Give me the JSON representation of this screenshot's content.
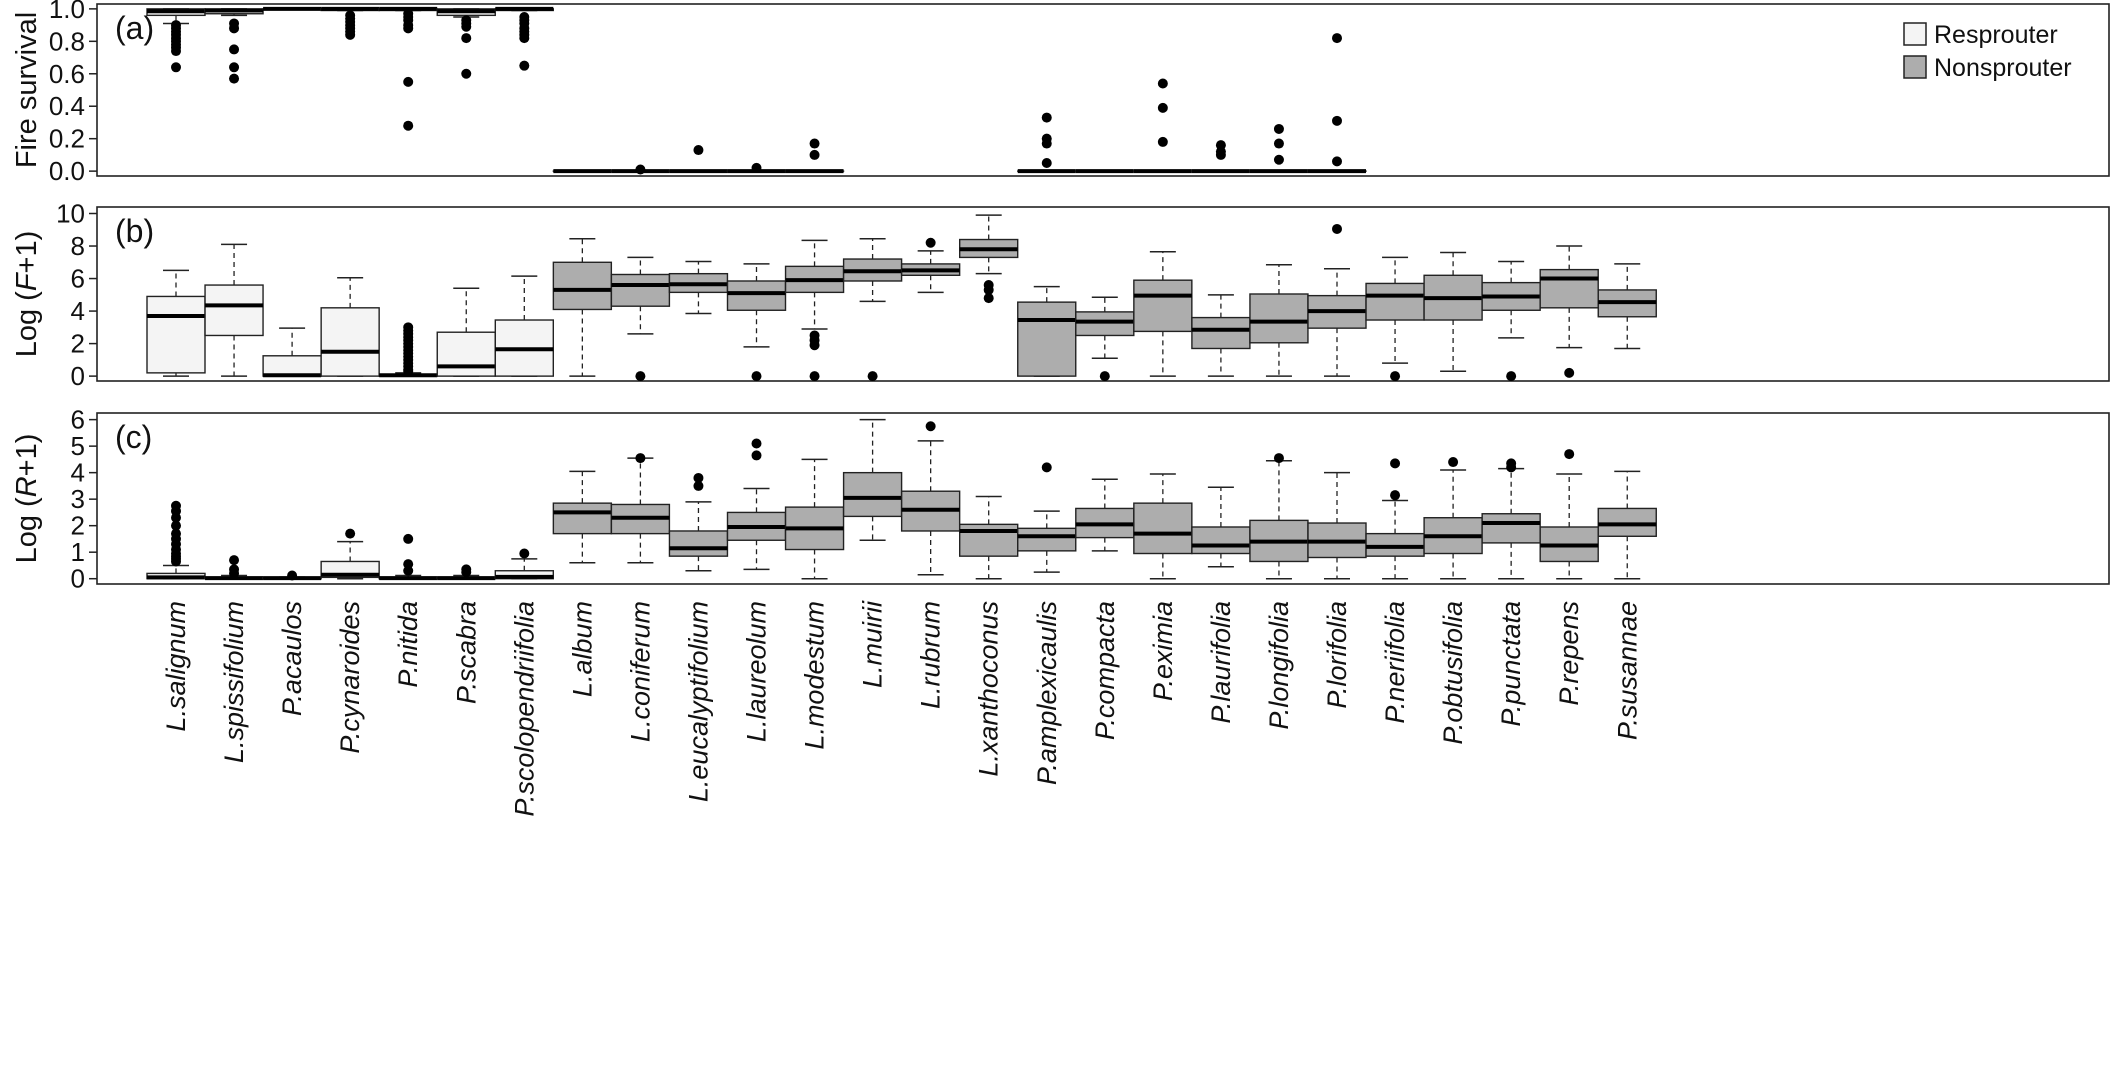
{
  "legend": {
    "resprouter_label": "Resprouter",
    "nonsprouter_label": "Nonsprouter",
    "resprouter_color": "#f4f4f4",
    "nonsprouter_color": "#adadad"
  },
  "species": [
    "L.salignum",
    "L.spissifolium",
    "P.acaulos",
    "P.cynaroides",
    "P.nitida",
    "P.scabra",
    "P.scolopendriifolia",
    "L.album",
    "L.coniferum",
    "L.eucalyptifolium",
    "L.laureolum",
    "L.modestum",
    "L.muirii",
    "L.rubrum",
    "L.xanthoconus",
    "P.amplexicaulis",
    "P.compacta",
    "P.eximia",
    "P.laurifolia",
    "P.longifolia",
    "P.lorifolia",
    "P.neriifolia",
    "P.obtusifolia",
    "P.punctata",
    "P.repens",
    "P.susannae"
  ],
  "groups": [
    "Resprouter",
    "Resprouter",
    "Resprouter",
    "Resprouter",
    "Resprouter",
    "Resprouter",
    "Resprouter",
    "Nonsprouter",
    "Nonsprouter",
    "Nonsprouter",
    "Nonsprouter",
    "Nonsprouter",
    "Nonsprouter",
    "Nonsprouter",
    "Nonsprouter",
    "Nonsprouter",
    "Nonsprouter",
    "Nonsprouter",
    "Nonsprouter",
    "Nonsprouter",
    "Nonsprouter",
    "Nonsprouter",
    "Nonsprouter",
    "Nonsprouter",
    "Nonsprouter",
    "Nonsprouter"
  ],
  "chart_data": [
    {
      "type": "box",
      "panel_label": "(a)",
      "ylabel": "Fire survival",
      "ylim": [
        -0.03,
        1.03
      ],
      "yticks": [
        "0.0",
        "0.2",
        "0.4",
        "0.6",
        "0.8",
        "1.0"
      ],
      "ytick_values": [
        0,
        0.2,
        0.4,
        0.6,
        0.8,
        1.0
      ],
      "legend_position": "top-right",
      "boxes": [
        {
          "lw": 0.91,
          "q1": 0.96,
          "med": 0.985,
          "q3": 1.0,
          "hw": 1.0,
          "out": [
            0.9,
            0.88,
            0.86,
            0.84,
            0.82,
            0.8,
            0.78,
            0.76,
            0.74,
            0.64
          ]
        },
        {
          "lw": 0.96,
          "q1": 0.97,
          "med": 0.99,
          "q3": 1.0,
          "hw": 1.0,
          "out": [
            0.91,
            0.88,
            0.75,
            0.64,
            0.57
          ]
        },
        {
          "lw": 1.0,
          "q1": 1.0,
          "med": 1.0,
          "q3": 1.0,
          "hw": 1.0,
          "out": []
        },
        {
          "lw": 0.99,
          "q1": 0.99,
          "med": 1.0,
          "q3": 1.0,
          "hw": 1.0,
          "out": [
            0.96,
            0.94,
            0.92,
            0.9,
            0.88,
            0.86,
            0.84
          ]
        },
        {
          "lw": 0.99,
          "q1": 0.99,
          "med": 1.0,
          "q3": 1.0,
          "hw": 1.0,
          "out": [
            0.97,
            0.95,
            0.93,
            0.9,
            0.88,
            0.55,
            0.28
          ]
        },
        {
          "lw": 0.95,
          "q1": 0.96,
          "med": 0.985,
          "q3": 1.0,
          "hw": 1.0,
          "out": [
            0.93,
            0.91,
            0.89,
            0.82,
            0.6
          ]
        },
        {
          "lw": 0.99,
          "q1": 0.99,
          "med": 1.0,
          "q3": 1.0,
          "hw": 1.0,
          "out": [
            0.95,
            0.93,
            0.91,
            0.88,
            0.86,
            0.84,
            0.82,
            0.65
          ]
        },
        {
          "lw": 0.0,
          "q1": 0.0,
          "med": 0.0,
          "q3": 0.0,
          "hw": 0.0,
          "out": []
        },
        {
          "lw": 0.0,
          "q1": 0.0,
          "med": 0.0,
          "q3": 0.0,
          "hw": 0.0,
          "out": [
            0.01
          ]
        },
        {
          "lw": 0.0,
          "q1": 0.0,
          "med": 0.0,
          "q3": 0.0,
          "hw": 0.0,
          "out": [
            0.13
          ]
        },
        {
          "lw": 0.0,
          "q1": 0.0,
          "med": 0.0,
          "q3": 0.0,
          "hw": 0.0,
          "out": [
            0.02
          ]
        },
        {
          "lw": 0.0,
          "q1": 0.0,
          "med": 0.0,
          "q3": 0.0,
          "hw": 0.0,
          "out": [
            0.17,
            0.1
          ]
        },
        null,
        null,
        null,
        {
          "lw": 0.0,
          "q1": 0.0,
          "med": 0.0,
          "q3": 0.0,
          "hw": 0.0,
          "out": [
            0.33,
            0.2,
            0.17,
            0.05
          ]
        },
        {
          "lw": 0.0,
          "q1": 0.0,
          "med": 0.0,
          "q3": 0.0,
          "hw": 0.0,
          "out": []
        },
        {
          "lw": 0.0,
          "q1": 0.0,
          "med": 0.0,
          "q3": 0.0,
          "hw": 0.0,
          "out": [
            0.54,
            0.39,
            0.18
          ]
        },
        {
          "lw": 0.0,
          "q1": 0.0,
          "med": 0.0,
          "q3": 0.0,
          "hw": 0.0,
          "out": [
            0.16,
            0.12,
            0.1
          ]
        },
        {
          "lw": 0.0,
          "q1": 0.0,
          "med": 0.0,
          "q3": 0.0,
          "hw": 0.0,
          "out": [
            0.26,
            0.17,
            0.07
          ]
        },
        {
          "lw": 0.0,
          "q1": 0.0,
          "med": 0.0,
          "q3": 0.0,
          "hw": 0.0,
          "out": [
            0.82,
            0.31,
            0.06
          ]
        },
        null,
        null,
        null,
        null,
        null
      ]
    },
    {
      "type": "box",
      "panel_label": "(b)",
      "ylabel": "Log (F+1)",
      "ylim": [
        -0.3,
        10.4
      ],
      "yticks": [
        "0",
        "2",
        "4",
        "6",
        "8",
        "10"
      ],
      "ytick_values": [
        0,
        2,
        4,
        6,
        8,
        10
      ],
      "boxes": [
        {
          "lw": 0.0,
          "q1": 0.2,
          "med": 3.7,
          "q3": 4.9,
          "hw": 6.5,
          "out": []
        },
        {
          "lw": 0.0,
          "q1": 2.5,
          "med": 4.35,
          "q3": 5.6,
          "hw": 8.1,
          "out": []
        },
        {
          "lw": 0.0,
          "q1": 0.0,
          "med": 0.05,
          "q3": 1.25,
          "hw": 2.95,
          "out": []
        },
        {
          "lw": 0.0,
          "q1": 0.0,
          "med": 1.5,
          "q3": 4.2,
          "hw": 6.05,
          "out": []
        },
        {
          "lw": 0.0,
          "q1": 0.0,
          "med": 0.05,
          "q3": 0.1,
          "hw": 0.2,
          "out": [
            3.0,
            2.8,
            2.6,
            2.4,
            2.2,
            2.0,
            1.8,
            1.6,
            1.4,
            1.2,
            1.0,
            0.8,
            0.6,
            0.4,
            0.3
          ]
        },
        {
          "lw": 0.0,
          "q1": 0.0,
          "med": 0.6,
          "q3": 2.7,
          "hw": 5.4,
          "out": []
        },
        {
          "lw": 0.0,
          "q1": 0.0,
          "med": 1.65,
          "q3": 3.45,
          "hw": 6.15,
          "out": []
        },
        {
          "lw": 0.0,
          "q1": 4.1,
          "med": 5.3,
          "q3": 7.0,
          "hw": 8.45,
          "out": []
        },
        {
          "lw": 2.6,
          "q1": 4.3,
          "med": 5.6,
          "q3": 6.25,
          "hw": 7.3,
          "out": [
            0.0
          ]
        },
        {
          "lw": 3.85,
          "q1": 5.15,
          "med": 5.65,
          "q3": 6.3,
          "hw": 7.05,
          "out": []
        },
        {
          "lw": 1.8,
          "q1": 4.05,
          "med": 5.1,
          "q3": 5.85,
          "hw": 6.9,
          "out": [
            0.0
          ]
        },
        {
          "lw": 2.9,
          "q1": 5.15,
          "med": 5.9,
          "q3": 6.75,
          "hw": 8.35,
          "out": [
            2.5,
            2.2,
            1.9,
            0.0
          ]
        },
        {
          "lw": 4.6,
          "q1": 5.85,
          "med": 6.45,
          "q3": 7.2,
          "hw": 8.45,
          "out": [
            0.0
          ]
        },
        {
          "lw": 5.15,
          "q1": 6.2,
          "med": 6.5,
          "q3": 6.9,
          "hw": 7.7,
          "out": [
            8.2
          ]
        },
        {
          "lw": 6.3,
          "q1": 7.3,
          "med": 7.8,
          "q3": 8.4,
          "hw": 9.9,
          "out": [
            5.6,
            5.3,
            4.8
          ]
        },
        {
          "lw": 0.0,
          "q1": 0.0,
          "med": 3.45,
          "q3": 4.55,
          "hw": 5.5,
          "out": []
        },
        {
          "lw": 1.1,
          "q1": 2.5,
          "med": 3.35,
          "q3": 3.95,
          "hw": 4.85,
          "out": [
            0.0
          ]
        },
        {
          "lw": 0.0,
          "q1": 2.75,
          "med": 4.95,
          "q3": 5.9,
          "hw": 7.65,
          "out": []
        },
        {
          "lw": 0.0,
          "q1": 1.7,
          "med": 2.85,
          "q3": 3.6,
          "hw": 5.0,
          "out": []
        },
        {
          "lw": 0.0,
          "q1": 2.05,
          "med": 3.35,
          "q3": 5.05,
          "hw": 6.85,
          "out": []
        },
        {
          "lw": 0.0,
          "q1": 2.95,
          "med": 4.0,
          "q3": 4.95,
          "hw": 6.6,
          "out": [
            9.05
          ]
        },
        {
          "lw": 0.8,
          "q1": 3.45,
          "med": 4.95,
          "q3": 5.7,
          "hw": 7.3,
          "out": [
            0.0
          ]
        },
        {
          "lw": 0.3,
          "q1": 3.45,
          "med": 4.8,
          "q3": 6.2,
          "hw": 7.6,
          "out": []
        },
        {
          "lw": 2.35,
          "q1": 4.05,
          "med": 4.9,
          "q3": 5.75,
          "hw": 7.05,
          "out": [
            0.0
          ]
        },
        {
          "lw": 1.75,
          "q1": 4.2,
          "med": 6.0,
          "q3": 6.55,
          "hw": 8.0,
          "out": [
            0.2
          ]
        },
        {
          "lw": 1.7,
          "q1": 3.65,
          "med": 4.55,
          "q3": 5.3,
          "hw": 6.9,
          "out": []
        }
      ]
    },
    {
      "type": "box",
      "panel_label": "(c)",
      "ylabel": "Log (R+1)",
      "ylim": [
        -0.2,
        6.25
      ],
      "yticks": [
        "0",
        "1",
        "2",
        "3",
        "4",
        "5",
        "6"
      ],
      "ytick_values": [
        0,
        1,
        2,
        3,
        4,
        5,
        6
      ],
      "boxes": [
        {
          "lw": 0.0,
          "q1": 0.0,
          "med": 0.05,
          "q3": 0.2,
          "hw": 0.5,
          "out": [
            2.75,
            2.55,
            2.3,
            2.0,
            1.7,
            1.5,
            1.3,
            1.1,
            0.95,
            0.85,
            0.75,
            0.65
          ]
        },
        {
          "lw": 0.0,
          "q1": 0.0,
          "med": 0.02,
          "q3": 0.06,
          "hw": 0.12,
          "out": [
            0.7,
            0.35,
            0.2
          ]
        },
        {
          "lw": 0.0,
          "q1": 0.0,
          "med": 0.02,
          "q3": 0.04,
          "hw": 0.06,
          "out": [
            0.12
          ]
        },
        {
          "lw": 0.0,
          "q1": 0.05,
          "med": 0.15,
          "q3": 0.65,
          "hw": 1.4,
          "out": [
            1.7
          ]
        },
        {
          "lw": 0.0,
          "q1": 0.0,
          "med": 0.02,
          "q3": 0.06,
          "hw": 0.12,
          "out": [
            1.5,
            0.55,
            0.3
          ]
        },
        {
          "lw": 0.0,
          "q1": 0.0,
          "med": 0.02,
          "q3": 0.06,
          "hw": 0.12,
          "out": [
            0.35,
            0.25
          ]
        },
        {
          "lw": 0.0,
          "q1": 0.0,
          "med": 0.07,
          "q3": 0.3,
          "hw": 0.75,
          "out": [
            0.95
          ]
        },
        {
          "lw": 0.6,
          "q1": 1.7,
          "med": 2.5,
          "q3": 2.85,
          "hw": 4.05,
          "out": []
        },
        {
          "lw": 0.6,
          "q1": 1.7,
          "med": 2.3,
          "q3": 2.8,
          "hw": 4.55,
          "out": [
            4.55
          ]
        },
        {
          "lw": 0.3,
          "q1": 0.85,
          "med": 1.15,
          "q3": 1.8,
          "hw": 2.9,
          "out": [
            3.8,
            3.5
          ]
        },
        {
          "lw": 0.35,
          "q1": 1.45,
          "med": 1.95,
          "q3": 2.5,
          "hw": 3.4,
          "out": [
            5.1,
            4.65
          ]
        },
        {
          "lw": 0.0,
          "q1": 1.1,
          "med": 1.9,
          "q3": 2.7,
          "hw": 4.5,
          "out": []
        },
        {
          "lw": 1.45,
          "q1": 2.35,
          "med": 3.05,
          "q3": 4.0,
          "hw": 6.0,
          "out": []
        },
        {
          "lw": 0.15,
          "q1": 1.8,
          "med": 2.6,
          "q3": 3.3,
          "hw": 5.2,
          "out": [
            5.75
          ]
        },
        {
          "lw": 0.0,
          "q1": 0.85,
          "med": 1.8,
          "q3": 2.05,
          "hw": 3.1,
          "out": []
        },
        {
          "lw": 0.25,
          "q1": 1.05,
          "med": 1.6,
          "q3": 1.9,
          "hw": 2.55,
          "out": [
            4.2
          ]
        },
        {
          "lw": 1.05,
          "q1": 1.55,
          "med": 2.05,
          "q3": 2.65,
          "hw": 3.75,
          "out": []
        },
        {
          "lw": 0.0,
          "q1": 0.95,
          "med": 1.7,
          "q3": 2.85,
          "hw": 3.95,
          "out": []
        },
        {
          "lw": 0.45,
          "q1": 0.95,
          "med": 1.25,
          "q3": 1.95,
          "hw": 3.45,
          "out": []
        },
        {
          "lw": 0.0,
          "q1": 0.65,
          "med": 1.4,
          "q3": 2.2,
          "hw": 4.45,
          "out": [
            4.55
          ]
        },
        {
          "lw": 0.0,
          "q1": 0.8,
          "med": 1.4,
          "q3": 2.1,
          "hw": 4.0,
          "out": []
        },
        {
          "lw": 0.0,
          "q1": 0.85,
          "med": 1.2,
          "q3": 1.7,
          "hw": 2.95,
          "out": [
            4.35,
            3.15
          ]
        },
        {
          "lw": 0.0,
          "q1": 0.95,
          "med": 1.6,
          "q3": 2.3,
          "hw": 4.1,
          "out": [
            4.4
          ]
        },
        {
          "lw": 0.0,
          "q1": 1.35,
          "med": 2.1,
          "q3": 2.45,
          "hw": 4.15,
          "out": [
            4.35,
            4.2
          ]
        },
        {
          "lw": 0.0,
          "q1": 0.65,
          "med": 1.25,
          "q3": 1.95,
          "hw": 3.95,
          "out": [
            4.7
          ]
        },
        {
          "lw": 0.0,
          "q1": 1.6,
          "med": 2.05,
          "q3": 2.65,
          "hw": 4.05,
          "out": []
        }
      ]
    }
  ]
}
